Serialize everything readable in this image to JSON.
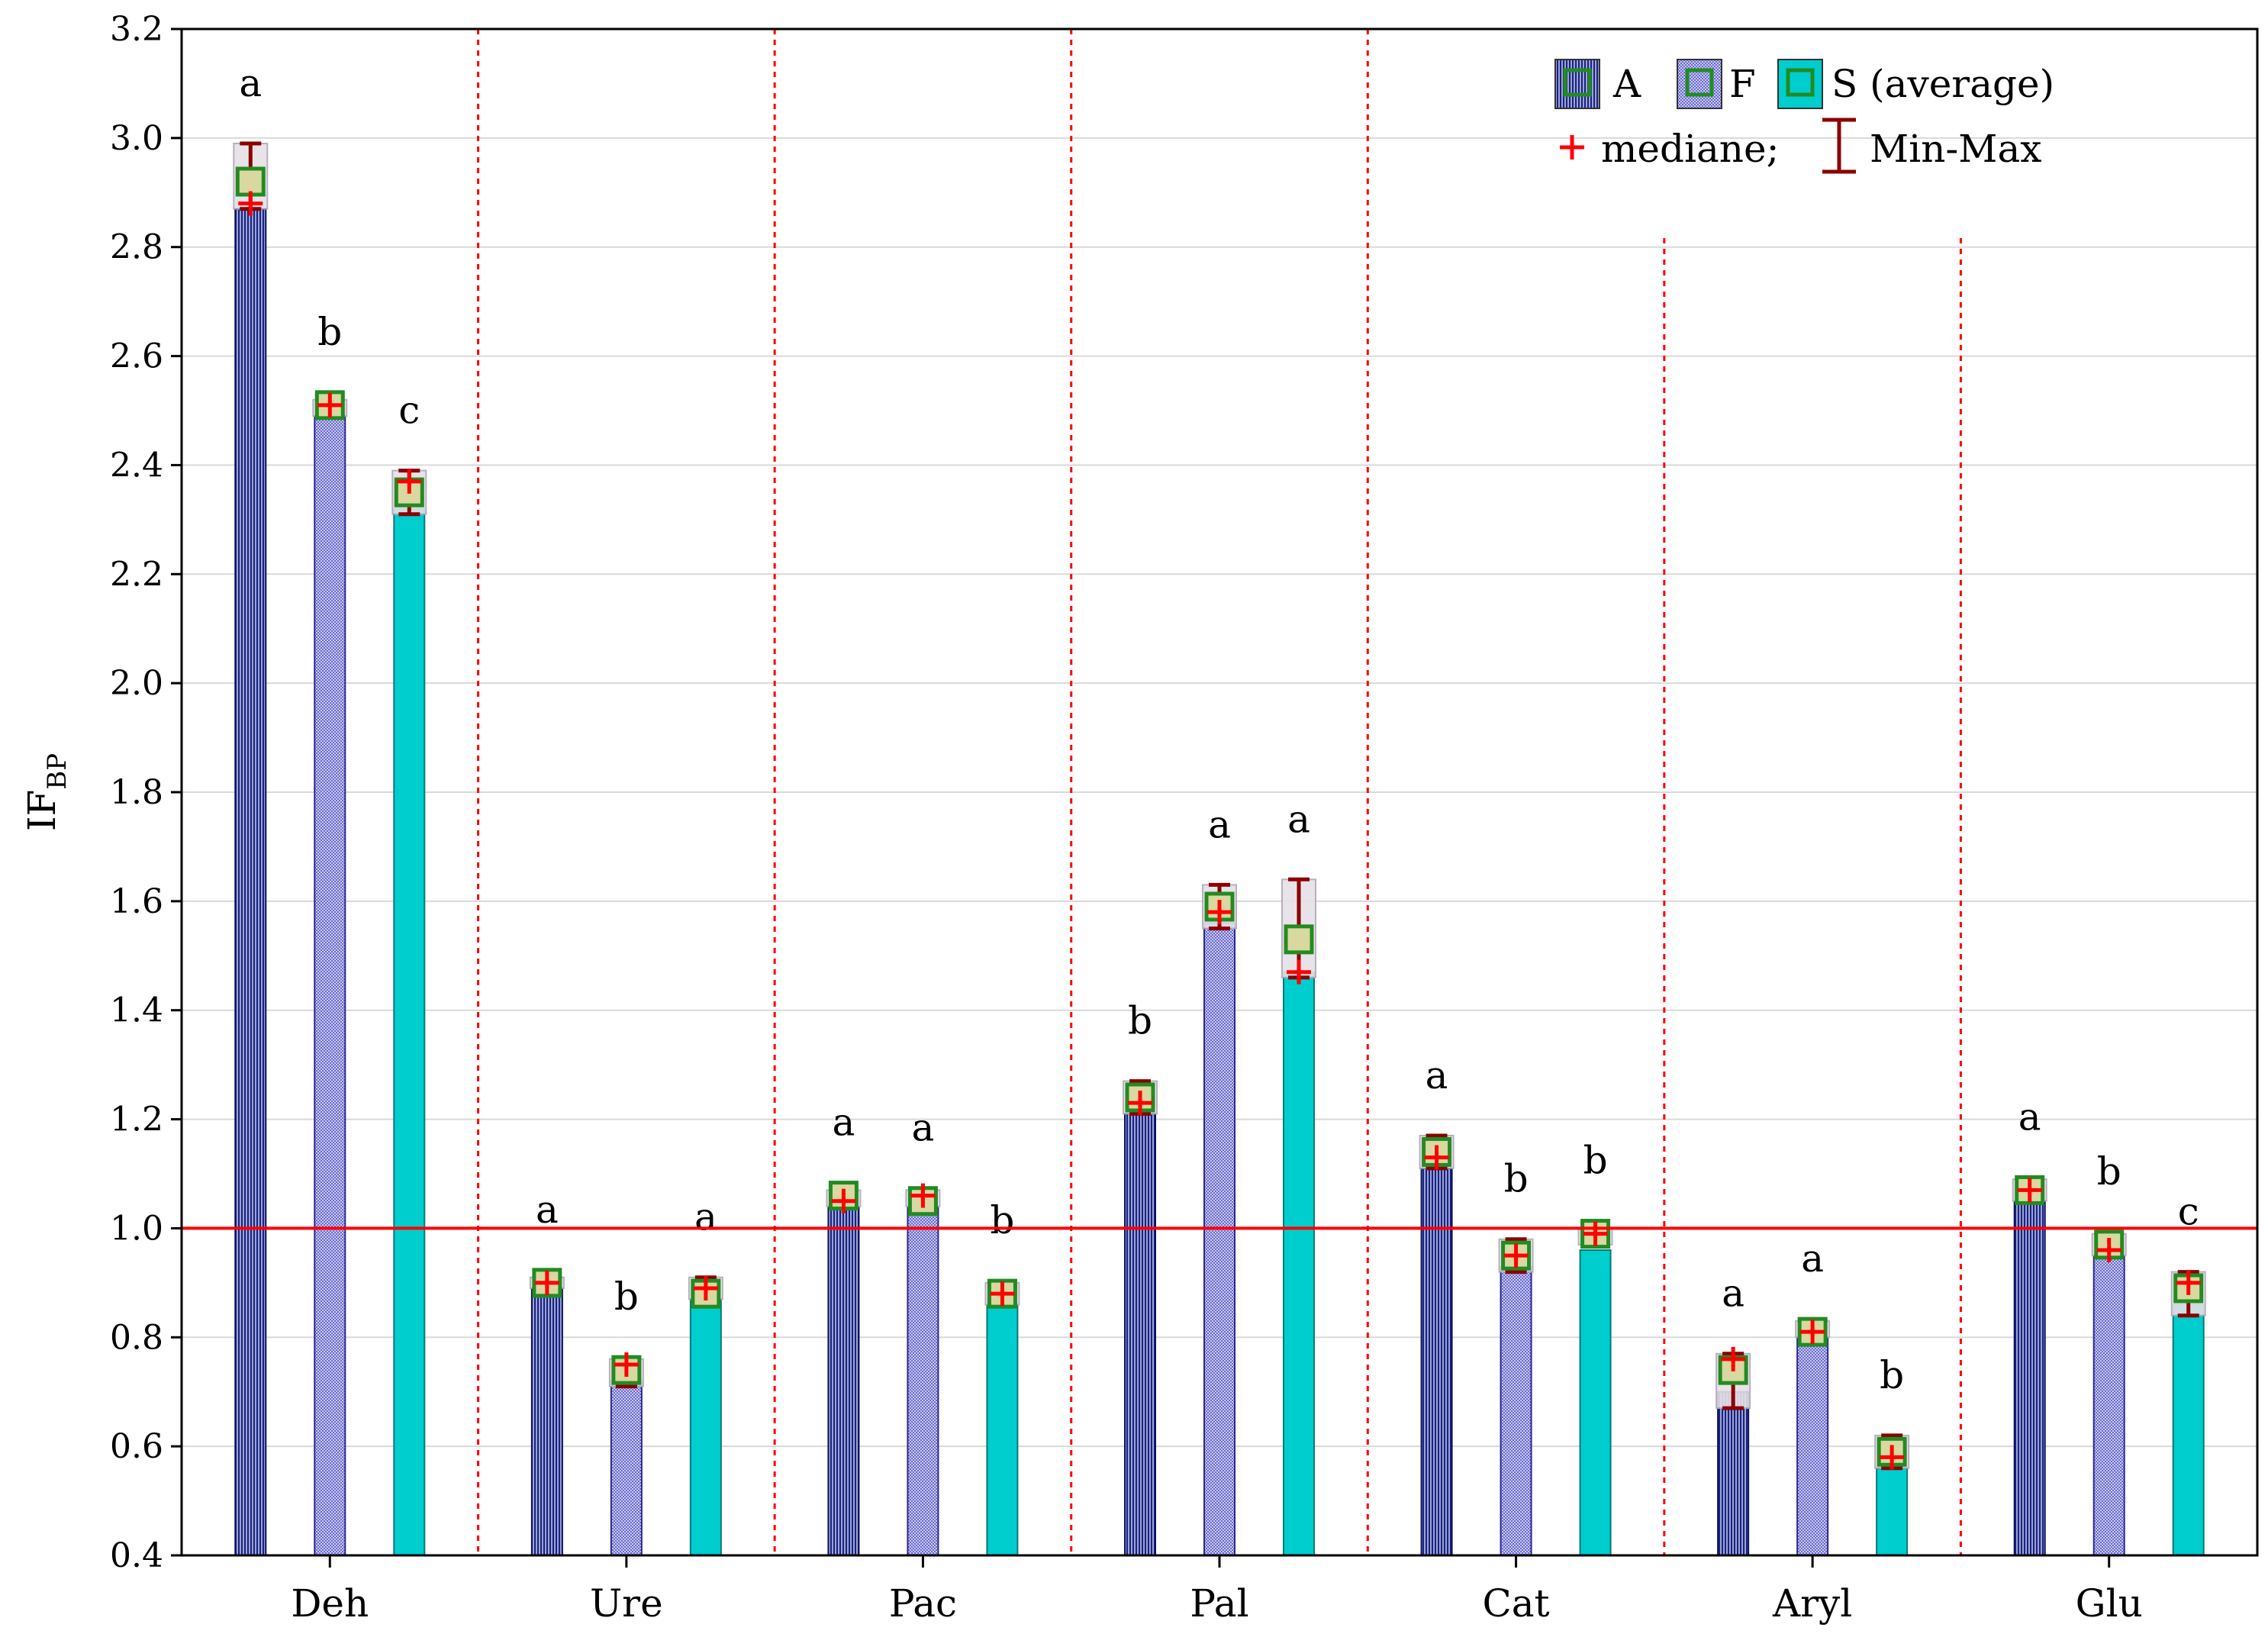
{
  "chart_data": {
    "type": "bar",
    "title": "",
    "xlabel": "",
    "ylabel": "IF",
    "ylabel_sub": "BP",
    "ylim": [
      0.4,
      3.2
    ],
    "yticks": [
      "0.4",
      "0.6",
      "0.8",
      "1.0",
      "1.2",
      "1.4",
      "1.6",
      "1.8",
      "2.0",
      "2.2",
      "2.4",
      "2.6",
      "2.8",
      "3.0",
      "3.2"
    ],
    "reference_line": 1.0,
    "grid": true,
    "legend_position": "top-right",
    "categories": [
      "Deh",
      "Ure",
      "Pac",
      "Pal",
      "Cat",
      "Aryl",
      "Glu"
    ],
    "series": [
      {
        "name": "A",
        "values": [
          2.87,
          0.89,
          1.04,
          1.21,
          1.11,
          0.7,
          1.05
        ],
        "mean": [
          2.92,
          0.9,
          1.06,
          1.24,
          1.14,
          0.74,
          1.07
        ],
        "median": [
          2.88,
          0.9,
          1.05,
          1.23,
          1.13,
          0.76,
          1.07
        ],
        "min": [
          2.87,
          0.89,
          1.04,
          1.21,
          1.11,
          0.67,
          1.05
        ],
        "max": [
          2.99,
          0.91,
          1.07,
          1.27,
          1.17,
          0.77,
          1.09
        ],
        "letters": [
          "a",
          "a",
          "a",
          "b",
          "a",
          "a",
          "a"
        ]
      },
      {
        "name": "F",
        "values": [
          2.49,
          0.72,
          1.04,
          1.56,
          0.93,
          0.8,
          0.95
        ],
        "mean": [
          2.51,
          0.74,
          1.05,
          1.59,
          0.95,
          0.81,
          0.97
        ],
        "median": [
          2.51,
          0.75,
          1.06,
          1.58,
          0.95,
          0.81,
          0.96
        ],
        "min": [
          2.49,
          0.71,
          1.04,
          1.55,
          0.92,
          0.8,
          0.95
        ],
        "max": [
          2.52,
          0.76,
          1.07,
          1.63,
          0.98,
          0.83,
          0.99
        ],
        "letters": [
          "b",
          "b",
          "a",
          "a",
          "b",
          "a",
          "b"
        ]
      },
      {
        "name": "S",
        "values": [
          2.32,
          0.87,
          0.86,
          1.47,
          0.96,
          0.56,
          0.86
        ],
        "mean": [
          2.35,
          0.88,
          0.88,
          1.53,
          0.99,
          0.59,
          0.89
        ],
        "median": [
          2.37,
          0.89,
          0.88,
          1.47,
          0.99,
          0.58,
          0.9
        ],
        "min": [
          2.31,
          0.87,
          0.86,
          1.46,
          0.97,
          0.56,
          0.84
        ],
        "max": [
          2.39,
          0.91,
          0.9,
          1.64,
          1.0,
          0.62,
          0.92
        ],
        "letters": [
          "c",
          "a",
          "b",
          "a",
          "b",
          "b",
          "c"
        ]
      }
    ],
    "legend": {
      "entries": [
        "A",
        "F",
        "S (average)"
      ],
      "median_label": "mediane;",
      "range_label": "Min-Max"
    },
    "colors": {
      "A": "#1a237e",
      "F": "#7c7cd8",
      "S": "#00cdcd",
      "mean_box": "#228b22",
      "median": "#ff0000",
      "whisker": "#8b0000",
      "reference": "#ff0000",
      "separator": "#ff0000",
      "grid": "#d9d9d9"
    }
  }
}
